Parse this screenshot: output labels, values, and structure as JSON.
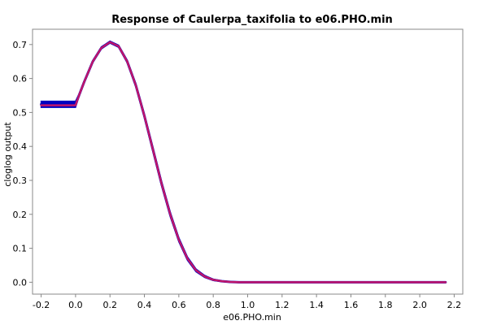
{
  "chart_data": {
    "type": "line",
    "title": "Response of Caulerpa_taxifolia to e06.PHO.min",
    "xlabel": "e06.PHO.min",
    "ylabel": "cloglog output",
    "xlim": [
      -0.25,
      2.25
    ],
    "ylim": [
      -0.035,
      0.745
    ],
    "xticks": [
      -0.2,
      0.0,
      0.2,
      0.4,
      0.6,
      0.8,
      1.0,
      1.2,
      1.4,
      1.6,
      1.8,
      2.0,
      2.2
    ],
    "xtick_labels": [
      "-0.2",
      "0.0",
      "0.2",
      "0.4",
      "0.6",
      "0.8",
      "1.0",
      "1.2",
      "1.4",
      "1.6",
      "1.8",
      "2.0",
      "2.2"
    ],
    "yticks": [
      0.0,
      0.1,
      0.2,
      0.3,
      0.4,
      0.5,
      0.6,
      0.7
    ],
    "ytick_labels": [
      "0.0",
      "0.1",
      "0.2",
      "0.3",
      "0.4",
      "0.5",
      "0.6",
      "0.7"
    ],
    "grid": true,
    "legend": "none",
    "series": [
      {
        "color": "#0000c0",
        "band_color": "#0000c0",
        "x": [
          -0.2,
          -0.1,
          0.0,
          0.02,
          0.05,
          0.1,
          0.15,
          0.2,
          0.25,
          0.3,
          0.35,
          0.4,
          0.45,
          0.5,
          0.55,
          0.6,
          0.65,
          0.7,
          0.75,
          0.8,
          0.85,
          0.9,
          0.95,
          1.0,
          1.1,
          1.5,
          2.0,
          2.15
        ],
        "values": [
          0.524,
          0.524,
          0.524,
          0.55,
          0.59,
          0.65,
          0.69,
          0.707,
          0.695,
          0.65,
          0.58,
          0.49,
          0.39,
          0.29,
          0.2,
          0.125,
          0.07,
          0.035,
          0.017,
          0.007,
          0.003,
          0.001,
          0.0,
          0.0,
          0.0,
          0.0,
          0.0,
          0.0
        ],
        "band_half_width": [
          0.009,
          0.009,
          0.009,
          0.004,
          0.003,
          0.003,
          0.003,
          0.003,
          0.003,
          0.004,
          0.005,
          0.006,
          0.007,
          0.007,
          0.007,
          0.006,
          0.005,
          0.004,
          0.003,
          0.002,
          0.001,
          0.001,
          0.0,
          0.0,
          0.0,
          0.0,
          0.0,
          0.0
        ]
      },
      {
        "color": "#c0156a",
        "x": [
          -0.2,
          -0.1,
          0.0,
          0.02,
          0.05,
          0.1,
          0.15,
          0.2,
          0.25,
          0.3,
          0.35,
          0.4,
          0.45,
          0.5,
          0.55,
          0.6,
          0.65,
          0.7,
          0.75,
          0.8,
          0.85,
          0.9,
          0.95,
          1.0,
          1.1,
          1.5,
          2.0,
          2.15
        ],
        "values": [
          0.521,
          0.521,
          0.521,
          0.55,
          0.59,
          0.65,
          0.69,
          0.707,
          0.695,
          0.65,
          0.58,
          0.49,
          0.39,
          0.29,
          0.2,
          0.125,
          0.07,
          0.035,
          0.017,
          0.007,
          0.003,
          0.001,
          0.0,
          0.0,
          0.0,
          0.0,
          0.0,
          0.0
        ]
      }
    ]
  }
}
